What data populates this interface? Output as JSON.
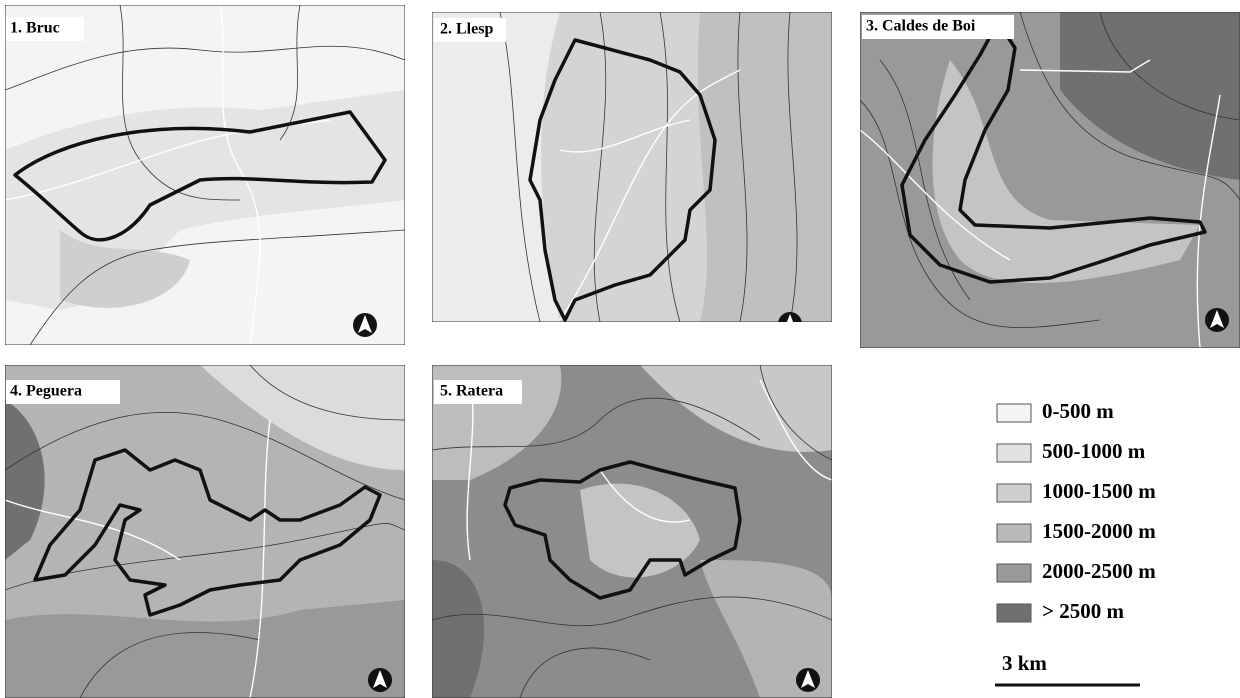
{
  "panels": [
    {
      "title": "1. Bruc"
    },
    {
      "title": "2. Llesp"
    },
    {
      "title": "3. Caldes de Boi"
    },
    {
      "title": "4. Peguera"
    },
    {
      "title": "5. Ratera"
    }
  ],
  "legend": [
    {
      "label": "0-500  m",
      "color": "#f4f4f4"
    },
    {
      "label": "500-1000  m",
      "color": "#e2e2e2"
    },
    {
      "label": "1000-1500  m",
      "color": "#cfcfcf"
    },
    {
      "label": "1500-2000  m",
      "color": "#b9b9b9"
    },
    {
      "label": "2000-2500  m",
      "color": "#999999"
    },
    {
      "label": "> 2500  m",
      "color": "#707070"
    }
  ],
  "scale": {
    "label": "3 km"
  }
}
